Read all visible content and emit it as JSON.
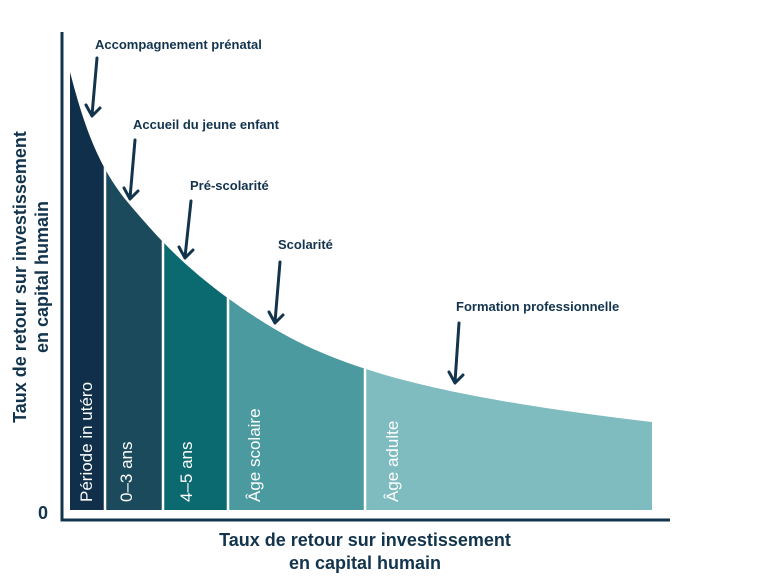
{
  "diagram": {
    "y_axis_title": [
      "Taux de retour sur investissement",
      "en capital humain"
    ],
    "x_axis_title": [
      "Taux de retour sur investissement",
      "en capital humain"
    ],
    "origin_label": "0",
    "segments": [
      "Période in utéro",
      "0–3 ans",
      "4–5 ans",
      "Âge scolaire",
      "Âge adulte"
    ],
    "annotations": [
      "Accompagnement prénatal",
      "Accueil du jeune enfant",
      "Pré-scolarité",
      "Scolarité",
      "Formation professionnelle"
    ]
  }
}
